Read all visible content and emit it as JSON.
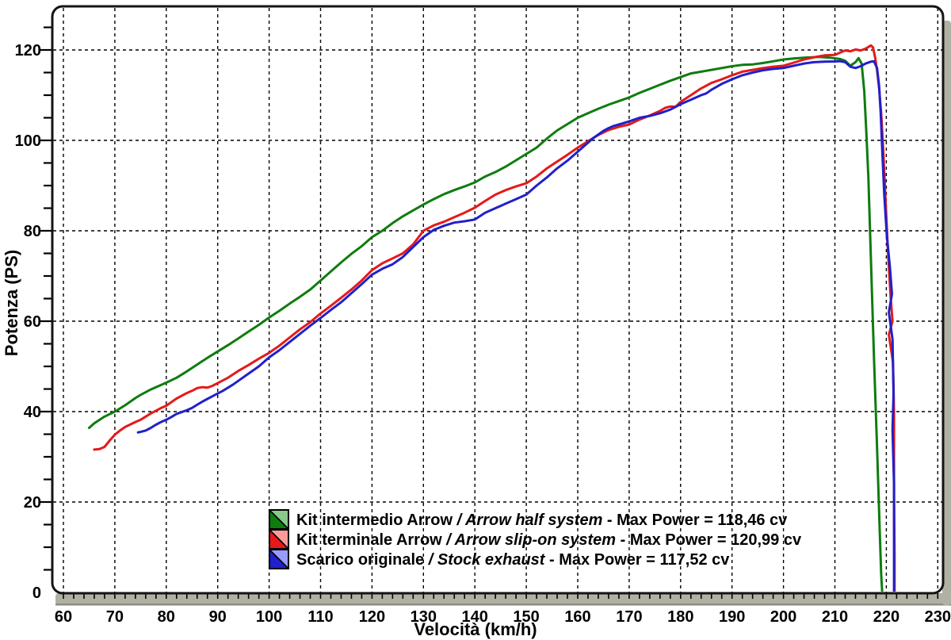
{
  "frame": {
    "background": "#ffffff",
    "border_color": "#141414",
    "grid_color": "#000000",
    "axis_bar_color": "#b1b1a3",
    "axis_bar_edge_color": "#8d8d80"
  },
  "chart_data": {
    "type": "line",
    "title": "",
    "xlabel": "Velocità (km/h)",
    "ylabel": "Potenza (PS)",
    "x_range": [
      58,
      230
    ],
    "y_range": [
      0,
      129.6
    ],
    "x_major_ticks": [
      60,
      70,
      80,
      90,
      100,
      110,
      120,
      130,
      140,
      150,
      160,
      170,
      180,
      190,
      200,
      210,
      220,
      230
    ],
    "y_major_ticks": [
      0,
      20,
      40,
      60,
      80,
      100,
      120
    ],
    "x_minor_step": 2,
    "y_minor_step": 5,
    "grid": "dashed",
    "legend_position": "inside-bottom-center",
    "series": [
      {
        "name": "kit-intermedio-arrow",
        "label_it": "Kit intermedio Arrow",
        "label_en": "Arrow half system",
        "max_power_label": "Max Power = 118,46 cv",
        "max_power_cv": 118.46,
        "color": "#0e7c0e",
        "tint": "#8cc78c",
        "points": [
          [
            65,
            36.4
          ],
          [
            66,
            37.4
          ],
          [
            68,
            38.9
          ],
          [
            70,
            40
          ],
          [
            72,
            41.4
          ],
          [
            74,
            43
          ],
          [
            75,
            43.7
          ],
          [
            77,
            44.9
          ],
          [
            79,
            45.9
          ],
          [
            80,
            46.4
          ],
          [
            82,
            47.5
          ],
          [
            84,
            48.9
          ],
          [
            86,
            50.4
          ],
          [
            88,
            51.9
          ],
          [
            90,
            53.3
          ],
          [
            92,
            54.7
          ],
          [
            94,
            56.2
          ],
          [
            96,
            57.7
          ],
          [
            98,
            59.2
          ],
          [
            100,
            60.8
          ],
          [
            102,
            62.3
          ],
          [
            104,
            63.9
          ],
          [
            106,
            65.4
          ],
          [
            108,
            67
          ],
          [
            110,
            69
          ],
          [
            112,
            71
          ],
          [
            114,
            73
          ],
          [
            116,
            74.9
          ],
          [
            118,
            76.6
          ],
          [
            120,
            78.6
          ],
          [
            122,
            80
          ],
          [
            124,
            81.7
          ],
          [
            126,
            83.2
          ],
          [
            128,
            84.5
          ],
          [
            130,
            85.8
          ],
          [
            132,
            87
          ],
          [
            134,
            88.1
          ],
          [
            136,
            89
          ],
          [
            138,
            89.8
          ],
          [
            140,
            90.7
          ],
          [
            142,
            92
          ],
          [
            144,
            93
          ],
          [
            146,
            94.2
          ],
          [
            148,
            95.6
          ],
          [
            150,
            97
          ],
          [
            152,
            98.4
          ],
          [
            154,
            100.4
          ],
          [
            156,
            102.2
          ],
          [
            158,
            103.6
          ],
          [
            160,
            105
          ],
          [
            162,
            106
          ],
          [
            164,
            107
          ],
          [
            166,
            107.9
          ],
          [
            168,
            108.7
          ],
          [
            170,
            109.5
          ],
          [
            172,
            110.5
          ],
          [
            174,
            111.4
          ],
          [
            176,
            112.3
          ],
          [
            178,
            113.2
          ],
          [
            180,
            114
          ],
          [
            182,
            114.8
          ],
          [
            184,
            115.2
          ],
          [
            186,
            115.6
          ],
          [
            188,
            116
          ],
          [
            190,
            116.4
          ],
          [
            192,
            116.7
          ],
          [
            194,
            116.8
          ],
          [
            196,
            117.1
          ],
          [
            198,
            117.5
          ],
          [
            200,
            117.9
          ],
          [
            202,
            118.1
          ],
          [
            204,
            118.3
          ],
          [
            206,
            118.4
          ],
          [
            207,
            118.46
          ],
          [
            209,
            118.3
          ],
          [
            211,
            118
          ],
          [
            212,
            117.6
          ],
          [
            213,
            116.5
          ],
          [
            214,
            117.3
          ],
          [
            214.6,
            118.2
          ],
          [
            215.2,
            117
          ],
          [
            215.7,
            111
          ],
          [
            216.1,
            102
          ],
          [
            216.5,
            92
          ],
          [
            217,
            74
          ],
          [
            217.6,
            52
          ],
          [
            218.2,
            32
          ],
          [
            218.7,
            14
          ],
          [
            219,
            4
          ],
          [
            219.2,
            0
          ]
        ]
      },
      {
        "name": "kit-terminale-arrow",
        "label_it": "Kit terminale Arrow",
        "label_en": "Arrow slip-on system",
        "max_power_label": "Max Power = 120,99 cv",
        "max_power_cv": 120.99,
        "color": "#e51919",
        "tint": "#ff9a9a",
        "points": [
          [
            66,
            31.6
          ],
          [
            67,
            31.7
          ],
          [
            68,
            32.2
          ],
          [
            69,
            33.6
          ],
          [
            70,
            34.9
          ],
          [
            71,
            35.8
          ],
          [
            72,
            36.6
          ],
          [
            74,
            37.7
          ],
          [
            75,
            38.2
          ],
          [
            77,
            39.6
          ],
          [
            79,
            40.8
          ],
          [
            80,
            41.3
          ],
          [
            82,
            42.9
          ],
          [
            84,
            44.1
          ],
          [
            85,
            44.6
          ],
          [
            86,
            45.2
          ],
          [
            87,
            45.4
          ],
          [
            88,
            45.3
          ],
          [
            89,
            45.7
          ],
          [
            90,
            46.3
          ],
          [
            92,
            47.5
          ],
          [
            94,
            49
          ],
          [
            96,
            50.3
          ],
          [
            98,
            51.7
          ],
          [
            100,
            53
          ],
          [
            102,
            54.6
          ],
          [
            104,
            56.4
          ],
          [
            106,
            58.2
          ],
          [
            108,
            59.8
          ],
          [
            110,
            61.7
          ],
          [
            112,
            63.4
          ],
          [
            114,
            65.2
          ],
          [
            116,
            67
          ],
          [
            118,
            69
          ],
          [
            120,
            71.3
          ],
          [
            122,
            72.8
          ],
          [
            124,
            73.9
          ],
          [
            126,
            75
          ],
          [
            128,
            77
          ],
          [
            130,
            80
          ],
          [
            132,
            81.2
          ],
          [
            134,
            82
          ],
          [
            136,
            83
          ],
          [
            138,
            84
          ],
          [
            140,
            85.1
          ],
          [
            142,
            86.6
          ],
          [
            144,
            88
          ],
          [
            146,
            89
          ],
          [
            148,
            89.8
          ],
          [
            150,
            90.5
          ],
          [
            152,
            92
          ],
          [
            154,
            93.8
          ],
          [
            156,
            95.3
          ],
          [
            158,
            96.8
          ],
          [
            160,
            98.4
          ],
          [
            162,
            99.8
          ],
          [
            164,
            101.2
          ],
          [
            166,
            102.3
          ],
          [
            168,
            103
          ],
          [
            170,
            103.5
          ],
          [
            172,
            104.6
          ],
          [
            174,
            105.5
          ],
          [
            176,
            106.5
          ],
          [
            177,
            107.2
          ],
          [
            178,
            107.5
          ],
          [
            179,
            107.4
          ],
          [
            180,
            108.5
          ],
          [
            182,
            110
          ],
          [
            184,
            111.5
          ],
          [
            185,
            112.1
          ],
          [
            186,
            112.7
          ],
          [
            188,
            113.5
          ],
          [
            190,
            114.4
          ],
          [
            192,
            115.2
          ],
          [
            194,
            115.6
          ],
          [
            196,
            116
          ],
          [
            198,
            116.3
          ],
          [
            200,
            116.5
          ],
          [
            202,
            117.2
          ],
          [
            204,
            117.9
          ],
          [
            206,
            118.4
          ],
          [
            208,
            118.8
          ],
          [
            210,
            118.9
          ],
          [
            211,
            119.4
          ],
          [
            212,
            119.9
          ],
          [
            213,
            119.7
          ],
          [
            214,
            120.1
          ],
          [
            215,
            119.9
          ],
          [
            216,
            120.3
          ],
          [
            217,
            121
          ],
          [
            217.4,
            120.6
          ],
          [
            217.8,
            118.5
          ],
          [
            218.2,
            115.5
          ],
          [
            218.6,
            111.5
          ],
          [
            219,
            106
          ],
          [
            219.4,
            98
          ],
          [
            219.8,
            88
          ],
          [
            220.3,
            76
          ],
          [
            220.8,
            66
          ],
          [
            221.2,
            60
          ],
          [
            220.5,
            57
          ],
          [
            221.3,
            51
          ],
          [
            221.5,
            40
          ],
          [
            221.5,
            22
          ],
          [
            221.6,
            8
          ],
          [
            221.6,
            0
          ]
        ]
      },
      {
        "name": "scarico-originale",
        "label_it": "Scarico originale",
        "label_en": "Stock exhaust",
        "max_power_label": "Max Power = 117,52 cv",
        "max_power_cv": 117.52,
        "color": "#2020cc",
        "tint": "#9a9aff",
        "points": [
          [
            74.5,
            35.4
          ],
          [
            75,
            35.5
          ],
          [
            76,
            35.8
          ],
          [
            77,
            36.4
          ],
          [
            78,
            37.1
          ],
          [
            79,
            37.7
          ],
          [
            80,
            38.2
          ],
          [
            81,
            38.8
          ],
          [
            82,
            39.5
          ],
          [
            83,
            39.9
          ],
          [
            84,
            40.3
          ],
          [
            85,
            40.8
          ],
          [
            86,
            41.5
          ],
          [
            87,
            42.2
          ],
          [
            88,
            42.8
          ],
          [
            89,
            43.4
          ],
          [
            90,
            44
          ],
          [
            91,
            44.6
          ],
          [
            92,
            45.3
          ],
          [
            93,
            46
          ],
          [
            94,
            46.8
          ],
          [
            95,
            47.6
          ],
          [
            96,
            48.4
          ],
          [
            98,
            50
          ],
          [
            100,
            52
          ],
          [
            102,
            53.6
          ],
          [
            104,
            55.4
          ],
          [
            106,
            57.2
          ],
          [
            108,
            59
          ],
          [
            110,
            60.7
          ],
          [
            112,
            62.5
          ],
          [
            114,
            64.2
          ],
          [
            116,
            66.2
          ],
          [
            118,
            68.2
          ],
          [
            120,
            70.3
          ],
          [
            122,
            71.6
          ],
          [
            124,
            72.6
          ],
          [
            126,
            74.2
          ],
          [
            128,
            76.4
          ],
          [
            130,
            78.6
          ],
          [
            132,
            80.2
          ],
          [
            134,
            81.1
          ],
          [
            136,
            81.8
          ],
          [
            138,
            82.1
          ],
          [
            140,
            82.5
          ],
          [
            142,
            84
          ],
          [
            144,
            85
          ],
          [
            146,
            86
          ],
          [
            148,
            87
          ],
          [
            150,
            88
          ],
          [
            152,
            90
          ],
          [
            154,
            91.8
          ],
          [
            156,
            93.8
          ],
          [
            158,
            95.5
          ],
          [
            160,
            97.5
          ],
          [
            162,
            99.5
          ],
          [
            163,
            100.5
          ],
          [
            164,
            101.3
          ],
          [
            165,
            102.1
          ],
          [
            166,
            102.7
          ],
          [
            167,
            103.2
          ],
          [
            168,
            103.5
          ],
          [
            170,
            104.2
          ],
          [
            172,
            105
          ],
          [
            174,
            105.4
          ],
          [
            176,
            106
          ],
          [
            178,
            106.8
          ],
          [
            180,
            108
          ],
          [
            182,
            109
          ],
          [
            184,
            110
          ],
          [
            185,
            110.4
          ],
          [
            186,
            111.2
          ],
          [
            188,
            112.5
          ],
          [
            190,
            113.5
          ],
          [
            192,
            114.4
          ],
          [
            194,
            115
          ],
          [
            196,
            115.5
          ],
          [
            198,
            115.8
          ],
          [
            200,
            116
          ],
          [
            202,
            116.5
          ],
          [
            204,
            117
          ],
          [
            206,
            117.3
          ],
          [
            208,
            117.4
          ],
          [
            210,
            117.45
          ],
          [
            211,
            117.52
          ],
          [
            212,
            117.3
          ],
          [
            213,
            116.3
          ],
          [
            214,
            116
          ],
          [
            215,
            116.4
          ],
          [
            216,
            117
          ],
          [
            217,
            117.4
          ],
          [
            217.6,
            117.5
          ],
          [
            218.2,
            116
          ],
          [
            218.6,
            112
          ],
          [
            218.9,
            106
          ],
          [
            219.2,
            98
          ],
          [
            219.6,
            88
          ],
          [
            220.1,
            79
          ],
          [
            220.7,
            72
          ],
          [
            221.1,
            66
          ],
          [
            220.5,
            62
          ],
          [
            221.2,
            56
          ],
          [
            221.4,
            44
          ],
          [
            221.2,
            36
          ],
          [
            221.5,
            24
          ],
          [
            221.5,
            0
          ]
        ]
      }
    ]
  }
}
